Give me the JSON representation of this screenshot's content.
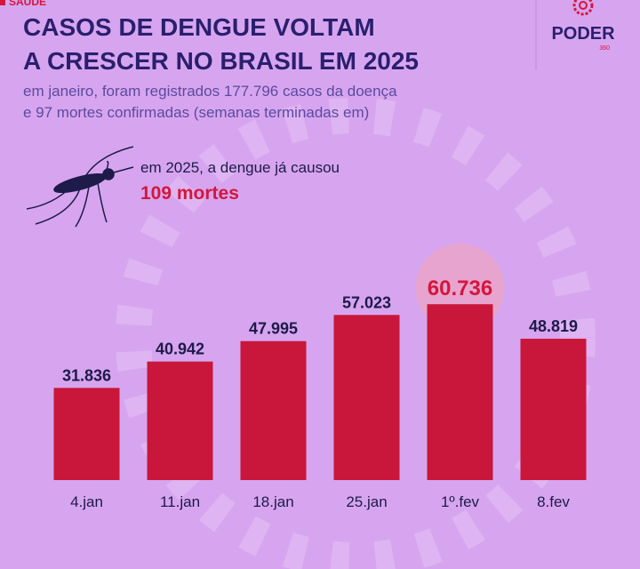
{
  "section": "SAÚDE",
  "brand": {
    "name": "PODER",
    "sub": "360"
  },
  "chart_data": {
    "type": "bar",
    "title": [
      "CASOS DE DENGUE VOLTAM",
      "A CRESCER NO BRASIL EM 2025"
    ],
    "subtitle": [
      "em janeiro, foram registrados 177.796 casos da doença",
      "e 97 mortes confirmadas (semanas terminadas em)"
    ],
    "annotation": {
      "text": "em 2025, a dengue já causou",
      "highlight": "109 mortes"
    },
    "categories": [
      "4.jan",
      "11.jan",
      "18.jan",
      "25.jan",
      "1º.fev",
      "8.fev"
    ],
    "values": [
      31836,
      40942,
      47995,
      57023,
      60736,
      48819
    ],
    "value_labels": [
      "31.836",
      "40.942",
      "47.995",
      "57.023",
      "60.736",
      "48.819"
    ],
    "color": "#c8173a",
    "highlight_index": 4,
    "highlight_color": "#d4163c",
    "ylim": [
      0,
      70000
    ]
  }
}
